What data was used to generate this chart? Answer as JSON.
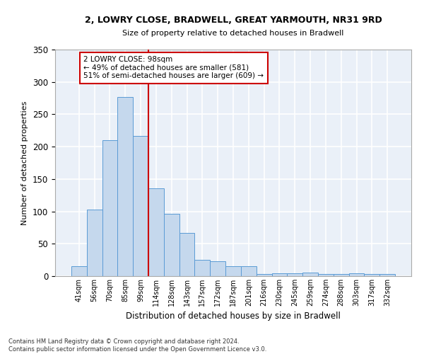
{
  "title1": "2, LOWRY CLOSE, BRADWELL, GREAT YARMOUTH, NR31 9RD",
  "title2": "Size of property relative to detached houses in Bradwell",
  "xlabel": "Distribution of detached houses by size in Bradwell",
  "ylabel": "Number of detached properties",
  "bar_labels": [
    "41sqm",
    "56sqm",
    "70sqm",
    "85sqm",
    "99sqm",
    "114sqm",
    "128sqm",
    "143sqm",
    "157sqm",
    "172sqm",
    "187sqm",
    "201sqm",
    "216sqm",
    "230sqm",
    "245sqm",
    "259sqm",
    "274sqm",
    "288sqm",
    "303sqm",
    "317sqm",
    "332sqm"
  ],
  "bar_values": [
    15,
    103,
    210,
    277,
    217,
    136,
    96,
    67,
    25,
    23,
    15,
    15,
    3,
    4,
    4,
    5,
    3,
    3,
    4,
    3,
    3
  ],
  "bar_color": "#c5d8ed",
  "bar_edge_color": "#5b9bd5",
  "bg_color": "#eaf0f8",
  "grid_color": "#ffffff",
  "vline_color": "#cc0000",
  "annotation_text": "2 LOWRY CLOSE: 98sqm\n← 49% of detached houses are smaller (581)\n51% of semi-detached houses are larger (609) →",
  "annotation_box_color": "#ffffff",
  "annotation_box_edge": "#cc0000",
  "footer": "Contains HM Land Registry data © Crown copyright and database right 2024.\nContains public sector information licensed under the Open Government Licence v3.0.",
  "ylim": [
    0,
    350
  ],
  "yticks": [
    0,
    50,
    100,
    150,
    200,
    250,
    300,
    350
  ]
}
